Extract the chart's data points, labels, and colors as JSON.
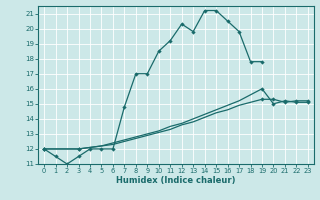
{
  "xlabel": "Humidex (Indice chaleur)",
  "xlim": [
    -0.5,
    23.5
  ],
  "ylim": [
    11,
    21.5
  ],
  "yticks": [
    11,
    12,
    13,
    14,
    15,
    16,
    17,
    18,
    19,
    20,
    21
  ],
  "xticks": [
    0,
    1,
    2,
    3,
    4,
    5,
    6,
    7,
    8,
    9,
    10,
    11,
    12,
    13,
    14,
    15,
    16,
    17,
    18,
    19,
    20,
    21,
    22,
    23
  ],
  "bg_color": "#cce8e8",
  "line_color": "#1a6b6b",
  "grid_color": "#b0d4d4",
  "line1_x": [
    0,
    1,
    2,
    3,
    4,
    5,
    6,
    7,
    8,
    9,
    10,
    11,
    12,
    13,
    14,
    15,
    16,
    17,
    18,
    19
  ],
  "line1_y": [
    12,
    11.5,
    11,
    11.5,
    12,
    12,
    12,
    14.8,
    17,
    17,
    18.5,
    19.2,
    20.3,
    19.8,
    21.2,
    21.2,
    20.5,
    19.8,
    17.8,
    17.8
  ],
  "line2_x": [
    0,
    3,
    19,
    20,
    21,
    22,
    23
  ],
  "line2_y": [
    12,
    12,
    16.0,
    15.0,
    15.2,
    15.1,
    15.1
  ],
  "line2_full_x": [
    0,
    3,
    4,
    5,
    6,
    7,
    8,
    9,
    10,
    11,
    12,
    13,
    14,
    15,
    16,
    17,
    18,
    19,
    20,
    21,
    22,
    23
  ],
  "line2_full_y": [
    12,
    12,
    12.1,
    12.2,
    12.4,
    12.6,
    12.8,
    13.0,
    13.2,
    13.5,
    13.7,
    14.0,
    14.3,
    14.6,
    14.9,
    15.2,
    15.6,
    16.0,
    15.0,
    15.2,
    15.1,
    15.1
  ],
  "line3_full_x": [
    0,
    3,
    4,
    5,
    6,
    7,
    8,
    9,
    10,
    11,
    12,
    13,
    14,
    15,
    16,
    17,
    18,
    19,
    20,
    21,
    22,
    23
  ],
  "line3_full_y": [
    12,
    12,
    12.1,
    12.2,
    12.3,
    12.5,
    12.7,
    12.9,
    13.1,
    13.3,
    13.6,
    13.8,
    14.1,
    14.4,
    14.6,
    14.9,
    15.1,
    15.3,
    15.3,
    15.1,
    15.2,
    15.2
  ],
  "line3_marker_x": [
    0,
    3,
    19,
    20,
    21,
    22,
    23
  ],
  "line3_marker_y": [
    12,
    12,
    15.3,
    15.3,
    15.1,
    15.2,
    15.2
  ]
}
